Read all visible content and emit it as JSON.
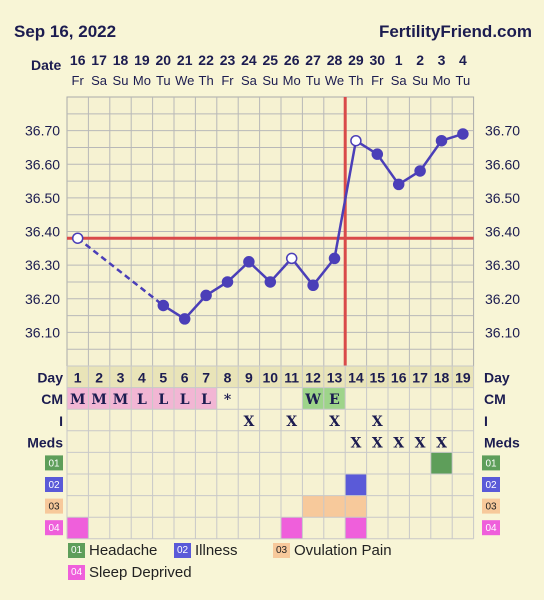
{
  "header": {
    "date": "Sep 16, 2022",
    "site": "FertilityFriend.com"
  },
  "labels": {
    "date": "Date",
    "day": "Day",
    "cm": "CM",
    "i": "I",
    "meds": "Meds"
  },
  "dates": [
    "16",
    "17",
    "18",
    "19",
    "20",
    "21",
    "22",
    "23",
    "24",
    "25",
    "26",
    "27",
    "28",
    "29",
    "30",
    "1",
    "2",
    "3",
    "4"
  ],
  "weekdays": [
    "Fr",
    "Sa",
    "Su",
    "Mo",
    "Tu",
    "We",
    "Th",
    "Fr",
    "Sa",
    "Su",
    "Mo",
    "Tu",
    "We",
    "Th",
    "Fr",
    "Sa",
    "Su",
    "Mo",
    "Tu"
  ],
  "days": [
    "1",
    "2",
    "3",
    "4",
    "5",
    "6",
    "7",
    "8",
    "9",
    "10",
    "11",
    "12",
    "13",
    "14",
    "15",
    "16",
    "17",
    "18",
    "19"
  ],
  "cm": [
    "M",
    "M",
    "M",
    "L",
    "L",
    "L",
    "L",
    "*",
    "",
    "",
    "",
    "W",
    "E",
    "",
    "",
    "",
    "",
    "",
    ""
  ],
  "cm_colors": {
    "M": "#f2b6d4",
    "L": "#f2b6d4",
    "W": "#9ed48a",
    "E": "#9ed48a"
  },
  "illness_marks": [
    "",
    "",
    "",
    "",
    "",
    "",
    "",
    "",
    "X",
    "",
    "X",
    "",
    "X",
    "",
    "X",
    "",
    "",
    "",
    ""
  ],
  "meds_marks": [
    "",
    "",
    "",
    "",
    "",
    "",
    "",
    "",
    "",
    "",
    "",
    "",
    "",
    "X",
    "X",
    "X",
    "X",
    "X",
    ""
  ],
  "symptoms": [
    {
      "code": "01",
      "label": "Headache",
      "color": "#5e9e5a",
      "days": [
        18
      ]
    },
    {
      "code": "02",
      "label": "Illness",
      "color": "#5a5ad8",
      "days": [
        14
      ]
    },
    {
      "code": "03",
      "label": "Ovulation Pain",
      "color": "#f7c99b",
      "days": [
        12,
        13,
        14
      ]
    },
    {
      "code": "04",
      "label": "Sleep Deprived",
      "color": "#ef5fdb",
      "days": [
        1,
        11,
        14
      ]
    }
  ],
  "chart_data": {
    "type": "line",
    "x": [
      1,
      5,
      6,
      7,
      8,
      9,
      10,
      11,
      12,
      13,
      14,
      15,
      16,
      17,
      18,
      19
    ],
    "y": [
      36.38,
      36.18,
      36.14,
      36.21,
      36.25,
      36.31,
      36.25,
      36.32,
      36.24,
      36.32,
      36.67,
      36.63,
      36.54,
      36.58,
      36.67,
      36.69
    ],
    "open_points": [
      1,
      11,
      14
    ],
    "dashed_segment": [
      1,
      5
    ],
    "ylim": [
      36.0,
      36.8
    ],
    "yticks": [
      "36.10",
      "36.20",
      "36.30",
      "36.40",
      "36.50",
      "36.60",
      "36.70"
    ],
    "coverline": 36.38,
    "ovulation_day": 13,
    "grid": true,
    "line_color": "#4b3fb8",
    "ref_color": "#d94a4a"
  }
}
